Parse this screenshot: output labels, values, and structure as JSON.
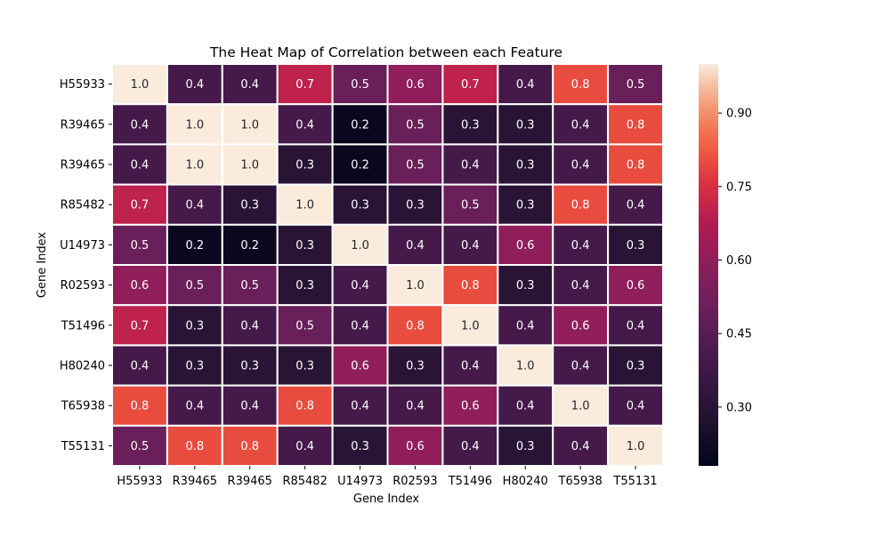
{
  "chart_data": {
    "type": "heatmap",
    "title": "The Heat Map of Correlation between each Feature",
    "xlabel": "Gene Index",
    "ylabel": "Gene Index",
    "x_categories": [
      "H55933",
      "R39465",
      "R39465",
      "R85482",
      "U14973",
      "R02593",
      "T51496",
      "H80240",
      "T65938",
      "T55131"
    ],
    "y_categories": [
      "H55933",
      "R39465",
      "R39465",
      "R85482",
      "U14973",
      "R02593",
      "T51496",
      "H80240",
      "T65938",
      "T55131"
    ],
    "values": [
      [
        1.0,
        0.4,
        0.4,
        0.7,
        0.5,
        0.6,
        0.7,
        0.4,
        0.8,
        0.5
      ],
      [
        0.4,
        1.0,
        1.0,
        0.4,
        0.2,
        0.5,
        0.3,
        0.3,
        0.4,
        0.8
      ],
      [
        0.4,
        1.0,
        1.0,
        0.3,
        0.2,
        0.5,
        0.4,
        0.3,
        0.4,
        0.8
      ],
      [
        0.7,
        0.4,
        0.3,
        1.0,
        0.3,
        0.3,
        0.5,
        0.3,
        0.8,
        0.4
      ],
      [
        0.5,
        0.2,
        0.2,
        0.3,
        1.0,
        0.4,
        0.4,
        0.6,
        0.4,
        0.3
      ],
      [
        0.6,
        0.5,
        0.5,
        0.3,
        0.4,
        1.0,
        0.8,
        0.3,
        0.4,
        0.6
      ],
      [
        0.7,
        0.3,
        0.4,
        0.5,
        0.4,
        0.8,
        1.0,
        0.4,
        0.6,
        0.4
      ],
      [
        0.4,
        0.3,
        0.3,
        0.3,
        0.6,
        0.3,
        0.4,
        1.0,
        0.4,
        0.3
      ],
      [
        0.8,
        0.4,
        0.4,
        0.8,
        0.4,
        0.4,
        0.6,
        0.4,
        1.0,
        0.4
      ],
      [
        0.5,
        0.8,
        0.8,
        0.4,
        0.3,
        0.6,
        0.4,
        0.3,
        0.4,
        1.0
      ]
    ],
    "value_labels": [
      [
        "1.0",
        "0.4",
        "0.4",
        "0.7",
        "0.5",
        "0.6",
        "0.7",
        "0.4",
        "0.8",
        "0.5"
      ],
      [
        "0.4",
        "1.0",
        "1.0",
        "0.4",
        "0.2",
        "0.5",
        "0.3",
        "0.3",
        "0.4",
        "0.8"
      ],
      [
        "0.4",
        "1.0",
        "1.0",
        "0.3",
        "0.2",
        "0.5",
        "0.4",
        "0.3",
        "0.4",
        "0.8"
      ],
      [
        "0.7",
        "0.4",
        "0.3",
        "1.0",
        "0.3",
        "0.3",
        "0.5",
        "0.3",
        "0.8",
        "0.4"
      ],
      [
        "0.5",
        "0.2",
        "0.2",
        "0.3",
        "1.0",
        "0.4",
        "0.4",
        "0.6",
        "0.4",
        "0.3"
      ],
      [
        "0.6",
        "0.5",
        "0.5",
        "0.3",
        "0.4",
        "1.0",
        "0.8",
        "0.3",
        "0.4",
        "0.6"
      ],
      [
        "0.7",
        "0.3",
        "0.4",
        "0.5",
        "0.4",
        "0.8",
        "1.0",
        "0.4",
        "0.6",
        "0.4"
      ],
      [
        "0.4",
        "0.3",
        "0.3",
        "0.3",
        "0.6",
        "0.3",
        "0.4",
        "1.0",
        "0.4",
        "0.3"
      ],
      [
        "0.8",
        "0.4",
        "0.4",
        "0.8",
        "0.4",
        "0.4",
        "0.6",
        "0.4",
        "1.0",
        "0.4"
      ],
      [
        "0.5",
        "0.8",
        "0.8",
        "0.4",
        "0.3",
        "0.6",
        "0.4",
        "0.3",
        "0.4",
        "1.0"
      ]
    ],
    "colorbar": {
      "min": 0.18,
      "max": 1.0,
      "ticks": [
        0.3,
        0.45,
        0.6,
        0.75,
        0.9
      ],
      "tick_labels": [
        "0.30",
        "0.45",
        "0.60",
        "0.75",
        "0.90"
      ]
    },
    "colormap": "rocket",
    "grid": false,
    "legend": "colorbar-right"
  }
}
